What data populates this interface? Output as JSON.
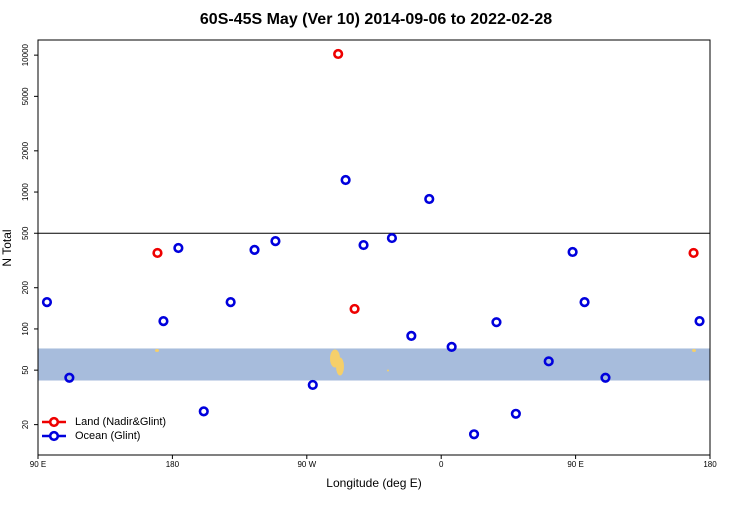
{
  "chart_data": {
    "type": "scatter",
    "title": "60S-45S May (Ver 10)   2014-09-06 to 2022-02-28",
    "x_label": "Longitude (deg E)",
    "y_label": "N Total",
    "xlim": [
      90,
      540
    ],
    "ylim": [
      12,
      12900
    ],
    "log_y": true,
    "xticks": [
      {
        "value": 90,
        "label": "90 E"
      },
      180,
      {
        "value": 270,
        "label": "90 W"
      },
      {
        "value": 360,
        "label": "0"
      },
      {
        "value": 450,
        "label": "90 E"
      },
      {
        "value": 540,
        "label": "180"
      }
    ],
    "yticks": [
      20,
      50,
      100,
      200,
      500,
      1000,
      2000,
      5000,
      10000
    ],
    "hline": 500,
    "band": {
      "ylim": [
        42,
        72
      ],
      "color": "#a7bcdc"
    },
    "legend": "bottom-left",
    "series": [
      {
        "name": "Land (Nadir&Glint)",
        "color": "#ee0000",
        "x": [
          291,
          170,
          302,
          529
        ],
        "values": [
          10200,
          359,
          140,
          359
        ]
      },
      {
        "name": "Ocean (Glint)",
        "color": "#0000dd",
        "x": [
          96,
          111,
          174,
          184,
          201,
          219,
          235,
          249,
          274,
          296,
          308,
          327,
          340,
          352,
          367,
          382,
          397,
          410,
          432,
          448,
          456,
          470,
          533
        ],
        "values": [
          157,
          44,
          114,
          390,
          25,
          157,
          378,
          438,
          39,
          1225,
          410,
          461,
          89,
          890,
          74,
          17,
          112,
          24,
          58,
          365,
          157,
          44,
          114
        ]
      }
    ]
  }
}
